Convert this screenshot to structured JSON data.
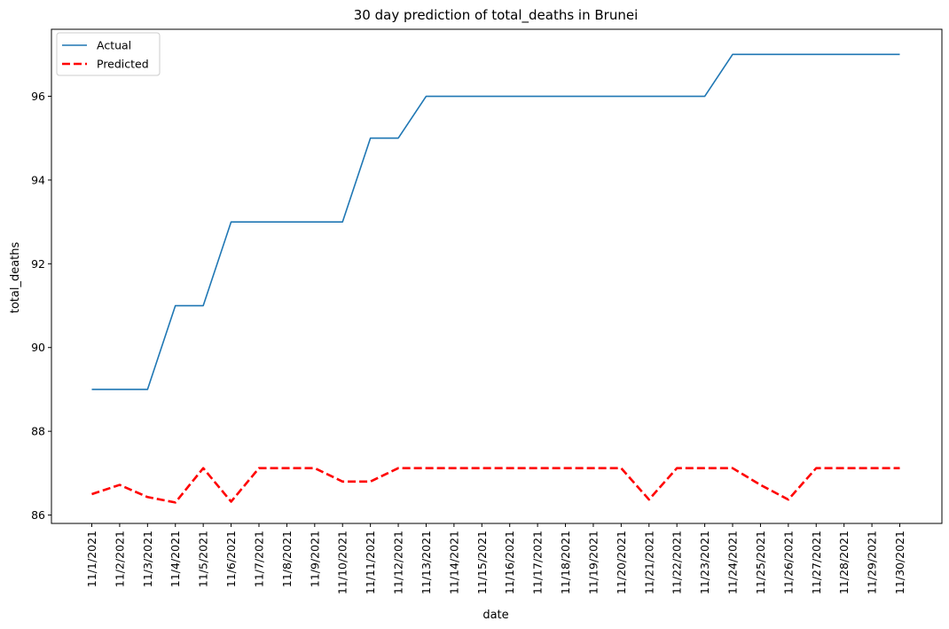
{
  "chart_data": {
    "type": "line",
    "title": "30 day prediction of total_deaths in Brunei",
    "xlabel": "date",
    "ylabel": "total_deaths",
    "ylim": [
      85.8,
      97.6
    ],
    "yticks": [
      86,
      88,
      90,
      92,
      94,
      96
    ],
    "grid": false,
    "legend_position": "top-left",
    "categories": [
      "11/1/2021",
      "11/2/2021",
      "11/3/2021",
      "11/4/2021",
      "11/5/2021",
      "11/6/2021",
      "11/7/2021",
      "11/8/2021",
      "11/9/2021",
      "11/10/2021",
      "11/11/2021",
      "11/12/2021",
      "11/13/2021",
      "11/14/2021",
      "11/15/2021",
      "11/16/2021",
      "11/17/2021",
      "11/18/2021",
      "11/19/2021",
      "11/20/2021",
      "11/21/2021",
      "11/22/2021",
      "11/23/2021",
      "11/24/2021",
      "11/25/2021",
      "11/26/2021",
      "11/27/2021",
      "11/28/2021",
      "11/29/2021",
      "11/30/2021"
    ],
    "series": [
      {
        "name": "Actual",
        "color": "#1f77b4",
        "style": "solid",
        "values": [
          89,
          89,
          89,
          91,
          91,
          93,
          93,
          93,
          93,
          93,
          95,
          95,
          96,
          96,
          96,
          96,
          96,
          96,
          96,
          96,
          96,
          96,
          96,
          97,
          97,
          97,
          97,
          97,
          97,
          97
        ]
      },
      {
        "name": "Predicted",
        "color": "#ff0000",
        "style": "dashed",
        "values": [
          86.5,
          86.72,
          86.43,
          86.3,
          87.12,
          86.32,
          87.12,
          87.12,
          87.12,
          86.8,
          86.8,
          87.12,
          87.12,
          87.12,
          87.12,
          87.12,
          87.12,
          87.12,
          87.12,
          87.12,
          86.37,
          87.12,
          87.12,
          87.12,
          86.72,
          86.37,
          87.12,
          87.12,
          87.12,
          87.12
        ]
      }
    ]
  }
}
